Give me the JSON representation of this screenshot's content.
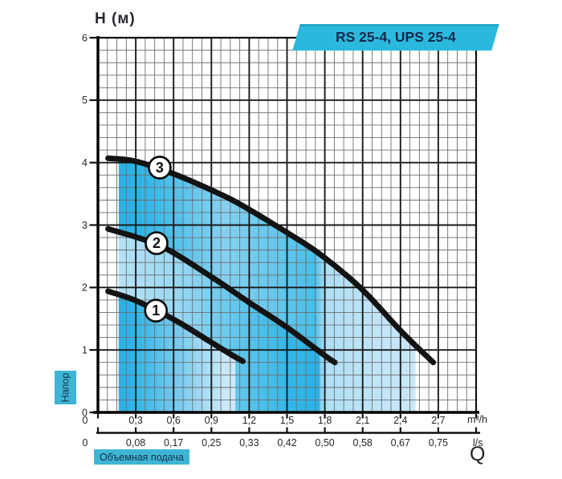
{
  "title_badge": "RS 25-4, UPS 25-4",
  "labels": {
    "y_axis_title": "H (м)",
    "y_axis_badge": "Напор",
    "x_axis_badge": "Объемная подача",
    "x_unit_primary": "m³/h",
    "x_unit_secondary": "l/s",
    "x_symbol": "Q"
  },
  "colors": {
    "title_badge_cyan": "#2ab9dd",
    "small_badge_cyan": "#3eb5d5",
    "badge_text_navy": "#14294d",
    "curve_black": "#131313",
    "fill_dark_cyan": "#29b2e6",
    "fill_light_blue": "#c9e8f9",
    "grid_minor": "#6e6e6e",
    "grid_major": "#1a1a1a"
  },
  "chart_data": {
    "type": "line",
    "title": "RS 25-4, UPS 25-4",
    "xlabel": "Q (Объемная подача)",
    "ylabel": "H (м) (Напор)",
    "x_units": [
      "m³/h",
      "l/s"
    ],
    "xlim_m3h": [
      0,
      3.0
    ],
    "ylim_m": [
      0,
      6
    ],
    "grid": {
      "x_major_step": 0.3,
      "x_minor_step": 0.075,
      "y_major_step": 1.0,
      "y_minor_step": 0.2
    },
    "y_ticks": [
      "0",
      "1",
      "2",
      "3",
      "4",
      "5",
      "6"
    ],
    "x_ticks_m3h": [
      "0",
      "0,3",
      "0,6",
      "0,9",
      "1,2",
      "1,5",
      "1,8",
      "2,1",
      "2,4",
      "2,7"
    ],
    "x_ticks_ls": [
      "0",
      "0,08",
      "0,17",
      "0,25",
      "0,33",
      "0,42",
      "0,50",
      "0,58",
      "0,67",
      "0,75"
    ],
    "series": [
      {
        "name": "1",
        "points": [
          [
            0.08,
            1.94
          ],
          [
            0.3,
            1.79
          ],
          [
            0.6,
            1.49
          ],
          [
            0.9,
            1.12
          ],
          [
            1.07,
            0.91
          ],
          [
            1.15,
            0.82
          ]
        ],
        "label_at": [
          0.46,
          1.63
        ]
      },
      {
        "name": "2",
        "points": [
          [
            0.08,
            2.94
          ],
          [
            0.5,
            2.66
          ],
          [
            0.9,
            2.17
          ],
          [
            1.2,
            1.76
          ],
          [
            1.5,
            1.36
          ],
          [
            1.8,
            0.91
          ],
          [
            1.88,
            0.8
          ]
        ],
        "label_at": [
          0.465,
          2.71
        ]
      },
      {
        "name": "3",
        "points": [
          [
            0.08,
            4.07
          ],
          [
            0.3,
            4.02
          ],
          [
            0.6,
            3.82
          ],
          [
            0.9,
            3.56
          ],
          [
            1.13,
            3.33
          ],
          [
            1.5,
            2.88
          ],
          [
            1.77,
            2.52
          ],
          [
            2.09,
            1.98
          ],
          [
            2.41,
            1.29
          ],
          [
            2.66,
            0.8
          ]
        ],
        "label_at": [
          0.49,
          3.92
        ]
      }
    ],
    "shaded_regions": [
      {
        "bounded_by_series": "3",
        "q_from": 0.165,
        "q_to": 2.52,
        "gradient_stops": [
          [
            0,
            "#29b2e6"
          ],
          [
            0.07,
            "#2cb4e7"
          ],
          [
            0.35,
            "#86d1f0"
          ],
          [
            0.58,
            "#5ac4ec"
          ],
          [
            0.66,
            "#45bee9"
          ],
          [
            0.695,
            "#aedff5"
          ],
          [
            0.85,
            "#bfe4f7"
          ],
          [
            1,
            "#c9e8f9"
          ]
        ]
      },
      {
        "bounded_by_series": "2",
        "q_from": 0.165,
        "q_to": 1.76,
        "gradient_stops": [
          [
            0,
            "#b7e1f6"
          ],
          [
            0.3,
            "#98d7f3"
          ],
          [
            0.6,
            "#5fc6ec"
          ],
          [
            0.85,
            "#33b7e8"
          ],
          [
            1,
            "#29b2e6"
          ]
        ]
      },
      {
        "bounded_by_series": "1",
        "q_from": 0.165,
        "q_to": 1.09,
        "gradient_stops": [
          [
            0,
            "#29b2e6"
          ],
          [
            0.12,
            "#2eb5e7"
          ],
          [
            0.55,
            "#7fcdf0"
          ],
          [
            0.88,
            "#c6e7f8"
          ],
          [
            1,
            "#cfeafa"
          ]
        ]
      }
    ]
  }
}
